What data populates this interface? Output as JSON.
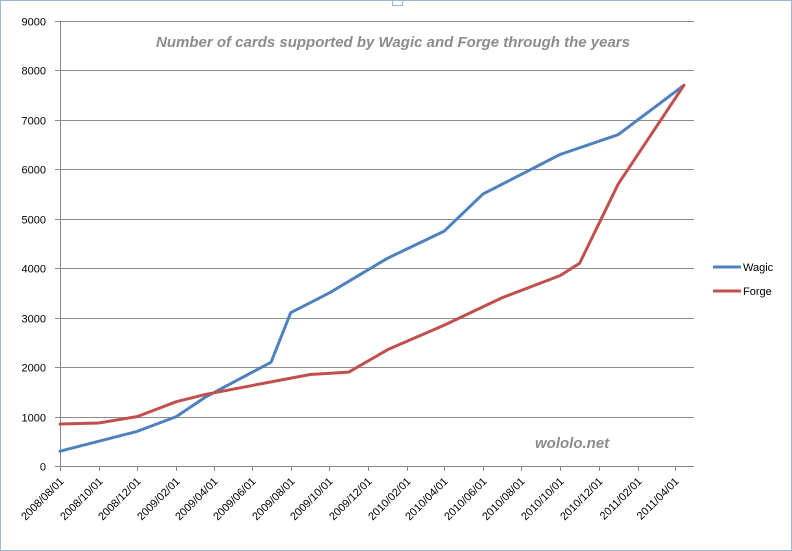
{
  "chart_data": {
    "type": "line",
    "title": "Number of cards supported by Wagic and Forge through the years",
    "watermark": "wololo.net",
    "categories": [
      "2008/08/01",
      "2008/10/01",
      "2008/12/01",
      "2009/02/01",
      "2009/04/01",
      "2009/06/01",
      "2009/08/01",
      "2009/10/01",
      "2009/12/01",
      "2010/02/01",
      "2010/04/01",
      "2010/06/01",
      "2010/08/01",
      "2010/10/01",
      "2010/12/01",
      "2011/02/01",
      "2011/04/01"
    ],
    "ylim": [
      0,
      9000
    ],
    "yticks": [
      0,
      1000,
      2000,
      3000,
      4000,
      5000,
      6000,
      7000,
      8000,
      9000
    ],
    "xlim": [
      "2008/08/01",
      "2011/05/01"
    ],
    "grid": true,
    "legend": "right",
    "series": [
      {
        "name": "Wagic",
        "color": "#4f81bd",
        "points": [
          [
            "2008/08/01",
            300
          ],
          [
            "2008/12/01",
            700
          ],
          [
            "2009/02/01",
            1000
          ],
          [
            "2009/03/20",
            1400
          ],
          [
            "2009/07/01",
            2100
          ],
          [
            "2009/08/01",
            3100
          ],
          [
            "2009/10/01",
            3500
          ],
          [
            "2010/01/01",
            4200
          ],
          [
            "2010/04/01",
            4750
          ],
          [
            "2010/06/01",
            5500
          ],
          [
            "2010/10/01",
            6300
          ],
          [
            "2011/01/01",
            6700
          ],
          [
            "2011/04/15",
            7700
          ]
        ]
      },
      {
        "name": "Forge",
        "color": "#c0504d",
        "points": [
          [
            "2008/08/01",
            850
          ],
          [
            "2008/10/01",
            870
          ],
          [
            "2008/12/01",
            1000
          ],
          [
            "2009/02/01",
            1300
          ],
          [
            "2009/03/20",
            1450
          ],
          [
            "2009/07/01",
            1700
          ],
          [
            "2009/09/01",
            1850
          ],
          [
            "2009/11/01",
            1900
          ],
          [
            "2010/01/01",
            2350
          ],
          [
            "2010/04/01",
            2850
          ],
          [
            "2010/07/01",
            3400
          ],
          [
            "2010/10/01",
            3850
          ],
          [
            "2010/11/01",
            4100
          ],
          [
            "2011/01/01",
            5700
          ],
          [
            "2011/04/15",
            7700
          ]
        ]
      }
    ]
  }
}
